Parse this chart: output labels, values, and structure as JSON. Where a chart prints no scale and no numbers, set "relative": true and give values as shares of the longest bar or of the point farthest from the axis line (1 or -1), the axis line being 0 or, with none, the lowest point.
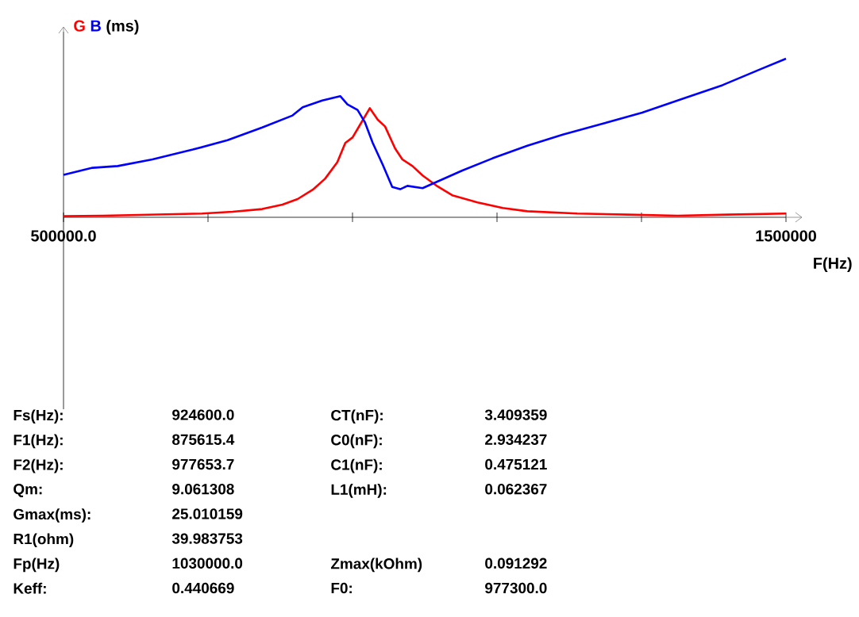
{
  "chart_data": {
    "type": "line",
    "relative": true,
    "ylabel": "(ms)",
    "xlabel": "F(Hz)",
    "xlim": [
      500000,
      1500000
    ],
    "xticks": [
      {
        "value": 500000,
        "label": "500000.0"
      },
      {
        "value": 700000,
        "label": null
      },
      {
        "value": 900000,
        "label": null
      },
      {
        "value": 1100000,
        "label": null
      },
      {
        "value": 1300000,
        "label": null
      },
      {
        "value": 1500000,
        "label": "1500000"
      }
    ],
    "legend": false,
    "grid": false,
    "marker": "none",
    "line_style": "solid",
    "series": [
      {
        "name": "G",
        "color": "#ff0000",
        "x": [
          500000,
          554000,
          623000,
          692000,
          734000,
          775000,
          803000,
          824000,
          845000,
          862000,
          879000,
          890000,
          900000,
          910000,
          924000,
          935000,
          945000,
          959000,
          969000,
          983000,
          997000,
          1018000,
          1038000,
          1073000,
          1108000,
          1142000,
          1211000,
          1281000,
          1350000,
          1419000,
          1500000
        ],
        "values": [
          0.007,
          0.01,
          0.017,
          0.024,
          0.035,
          0.052,
          0.08,
          0.115,
          0.174,
          0.243,
          0.347,
          0.469,
          0.503,
          0.58,
          0.688,
          0.615,
          0.573,
          0.434,
          0.365,
          0.323,
          0.264,
          0.194,
          0.139,
          0.094,
          0.059,
          0.038,
          0.024,
          0.017,
          0.01,
          0.017,
          0.024
        ]
      },
      {
        "name": "B",
        "color": "#0000ff",
        "x": [
          500000,
          540000,
          575000,
          623000,
          679000,
          727000,
          775000,
          817000,
          831000,
          858000,
          883000,
          893000,
          907000,
          917000,
          928000,
          942000,
          955000,
          966000,
          976000,
          997000,
          1018000,
          1052000,
          1094000,
          1142000,
          1191000,
          1246000,
          1301000,
          1357000,
          1412000,
          1467000,
          1500000
        ],
        "values": [
          0.267,
          0.312,
          0.323,
          0.365,
          0.427,
          0.486,
          0.566,
          0.642,
          0.694,
          0.736,
          0.764,
          0.712,
          0.677,
          0.601,
          0.469,
          0.33,
          0.191,
          0.177,
          0.198,
          0.184,
          0.226,
          0.295,
          0.372,
          0.451,
          0.521,
          0.59,
          0.66,
          0.747,
          0.833,
          0.938,
          1.0
        ]
      }
    ],
    "annotations": [
      "Fs(Hz):",
      "F1(Hz):",
      "F2(Hz):",
      "Qm:",
      "Gmax(ms):",
      "R1(ohm)",
      "Fp(Hz)",
      "Keff:",
      "924600.0",
      "875615.4",
      "977653.7",
      "9.061308",
      "25.010159",
      "39.983753",
      "1030000.0",
      "0.440669",
      "CT(nF):",
      "C0(nF):",
      "C1(nF):",
      "L1(mH):",
      "Zmax(kOhm)",
      "F0:",
      "3.409359",
      "2.934237",
      "0.475121",
      "0.062367",
      "0.091292",
      "977300.0"
    ]
  }
}
